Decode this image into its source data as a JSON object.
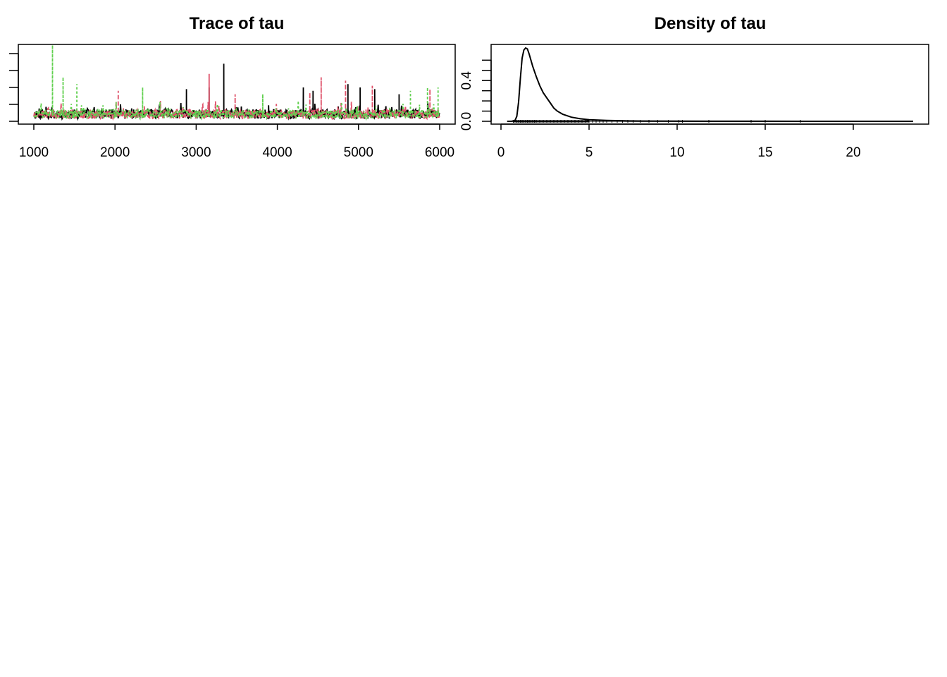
{
  "chart_data": [
    {
      "type": "line",
      "title": "Trace of tau",
      "xlabel": "",
      "ylabel": "",
      "xlim": [
        1000,
        6000
      ],
      "ylim": [
        0,
        5
      ],
      "x_ticks": [
        "1000",
        "2000",
        "3000",
        "4000",
        "5000",
        "6000"
      ],
      "x_tick_values": [
        1000,
        2000,
        3000,
        4000,
        5000,
        6000
      ],
      "y_tick_values": [
        0,
        1,
        2,
        3,
        4
      ],
      "series": [
        {
          "color": "#000000",
          "dash": "solid",
          "seed": 11,
          "spikes": [
            [
              3340,
              3.4
            ],
            [
              3160,
              2.0
            ],
            [
              2880,
              1.9
            ],
            [
              4320,
              2.0
            ],
            [
              4870,
              2.2
            ],
            [
              5020,
              2.0
            ],
            [
              5200,
              1.9
            ],
            [
              4440,
              1.8
            ],
            [
              5500,
              1.6
            ]
          ]
        },
        {
          "color": "#DF536B",
          "dash": "6,3",
          "seed": 23,
          "spikes": [
            [
              3160,
              2.8
            ],
            [
              4540,
              2.6
            ],
            [
              4840,
              2.4
            ],
            [
              5170,
              2.1
            ],
            [
              2040,
              1.8
            ],
            [
              4400,
              1.7
            ],
            [
              5880,
              1.9
            ],
            [
              3480,
              1.6
            ]
          ]
        },
        {
          "color": "#61D04F",
          "dash": "3,3",
          "seed": 37,
          "spikes": [
            [
              1230,
              4.5
            ],
            [
              1360,
              2.6
            ],
            [
              1530,
              2.2
            ],
            [
              2340,
              2.0
            ],
            [
              5850,
              2.0
            ],
            [
              5980,
              2.0
            ],
            [
              5640,
              1.8
            ],
            [
              3820,
              1.6
            ]
          ]
        }
      ]
    },
    {
      "type": "line",
      "title": "Density of tau",
      "xlabel": "",
      "ylabel": "",
      "xlim": [
        0,
        24
      ],
      "ylim": [
        0,
        0.72
      ],
      "x_ticks": [
        "0",
        "5",
        "10",
        "15",
        "20"
      ],
      "x_tick_values": [
        0,
        5,
        10,
        15,
        20
      ],
      "y_ticks": [
        "0.0",
        "0.4"
      ],
      "y_tick_values": [
        0.0,
        0.4
      ],
      "y_minor_tick_values": [
        0.0,
        0.1,
        0.2,
        0.3,
        0.4,
        0.5,
        0.6
      ],
      "density_x": [
        0.35,
        0.6,
        0.8,
        0.9,
        1.0,
        1.1,
        1.2,
        1.3,
        1.4,
        1.5,
        1.6,
        1.7,
        1.8,
        2.0,
        2.2,
        2.4,
        2.6,
        2.8,
        3.0,
        3.2,
        3.5,
        4.0,
        4.5,
        5.0,
        6.0,
        7.0,
        8.0,
        10.0,
        12.0,
        15.0,
        20.0,
        23.4
      ],
      "density_y": [
        0.0,
        0.0,
        0.01,
        0.05,
        0.19,
        0.42,
        0.62,
        0.7,
        0.72,
        0.71,
        0.66,
        0.6,
        0.54,
        0.44,
        0.35,
        0.28,
        0.23,
        0.18,
        0.13,
        0.1,
        0.07,
        0.04,
        0.025,
        0.015,
        0.008,
        0.005,
        0.003,
        0.002,
        0.001,
        0.0006,
        0.0002,
        0.0
      ],
      "rug_x": [
        0.7,
        0.9,
        1.0,
        1.1,
        1.2,
        1.3,
        1.4,
        1.5,
        1.6,
        1.7,
        1.8,
        1.9,
        2.0,
        2.2,
        2.4,
        2.6,
        2.8,
        3.0,
        3.2,
        3.4,
        3.6,
        3.8,
        4.0,
        4.2,
        4.4,
        4.6,
        4.8,
        5.0,
        5.2,
        5.4,
        5.6,
        5.8,
        6.0,
        6.3,
        6.6,
        6.9,
        7.2,
        7.5,
        7.9,
        8.4,
        8.9,
        9.5,
        10.1,
        10.3,
        11.8,
        14.2,
        15.0,
        17.0
      ]
    }
  ]
}
